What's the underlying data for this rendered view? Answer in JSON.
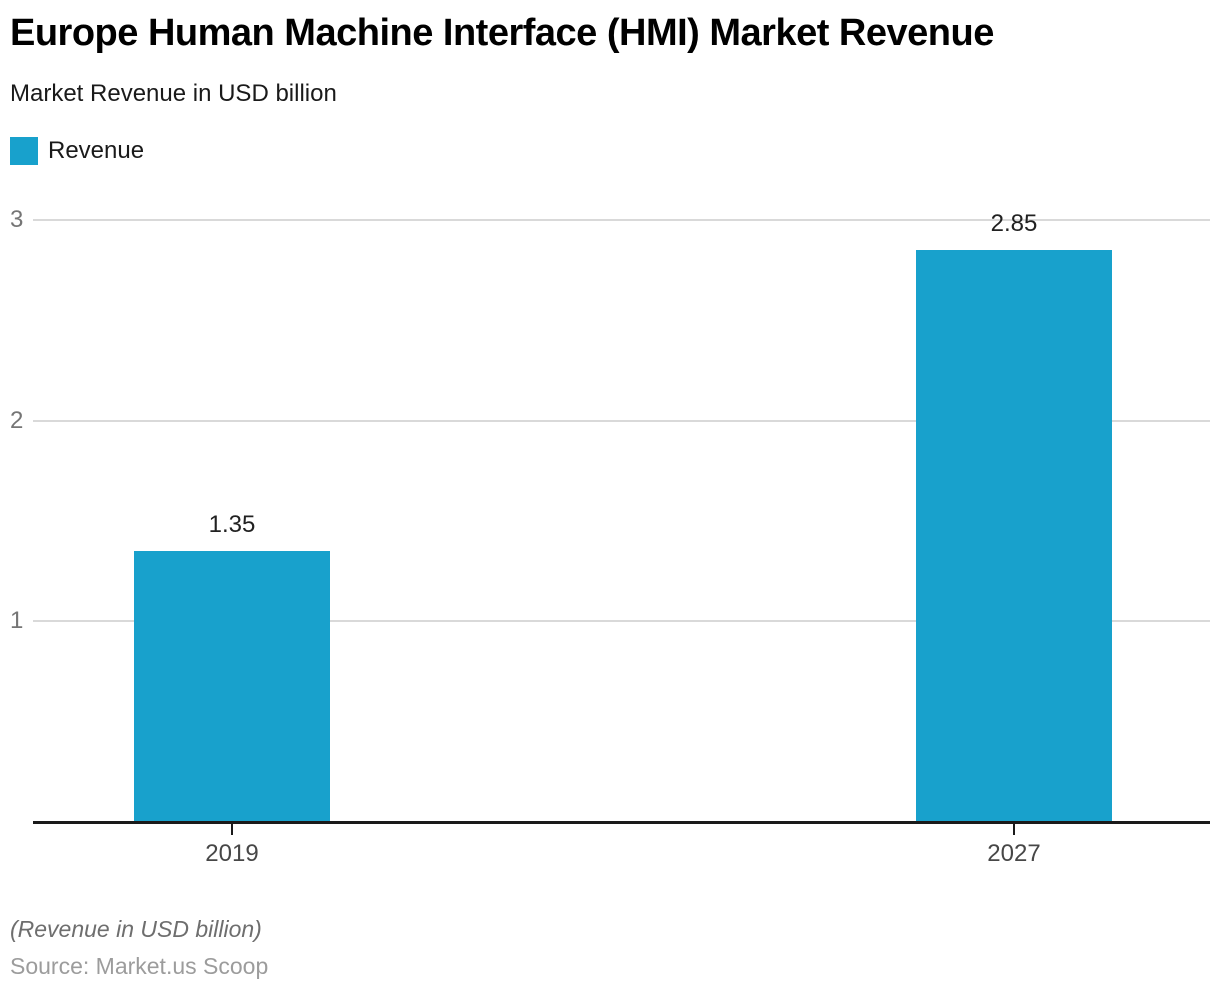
{
  "header": {
    "title": "Europe Human Machine Interface (HMI) Market Revenue",
    "subtitle": "Market Revenue in USD billion"
  },
  "legend": {
    "items": [
      {
        "label": "Revenue",
        "color": "#18a1cc"
      }
    ]
  },
  "chart_data": {
    "type": "bar",
    "title": "Europe Human Machine Interface (HMI) Market Revenue",
    "subtitle": "Market Revenue in USD billion",
    "categories": [
      "2019",
      "2027"
    ],
    "series": [
      {
        "name": "Revenue",
        "values": [
          1.35,
          2.85
        ],
        "color": "#18a1cc"
      }
    ],
    "value_labels": [
      "1.35",
      "2.85"
    ],
    "xlabel": "",
    "ylabel": "",
    "ylim": [
      0,
      3
    ],
    "yticks": [
      1,
      2,
      3
    ],
    "grid": true,
    "legend_position": "top-left",
    "gridline_color": "#d9d9d9",
    "axis_color": "#1a1a1a"
  },
  "footer": {
    "note": "(Revenue in USD billion)",
    "source": "Source: Market.us Scoop"
  }
}
